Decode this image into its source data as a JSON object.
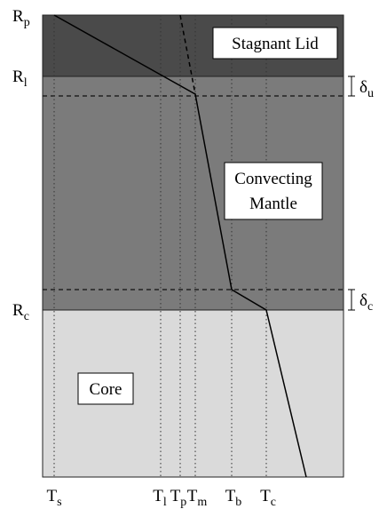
{
  "regions": [
    {
      "label": "Stagnant Lid"
    },
    {
      "label": "Convecting Mantle",
      "lines": [
        "Convecting",
        "Mantle"
      ]
    },
    {
      "label": "Core"
    }
  ],
  "radius_labels": [
    {
      "base": "R",
      "sub": "p"
    },
    {
      "base": "R",
      "sub": "l"
    },
    {
      "base": "R",
      "sub": "c"
    }
  ],
  "boundary_layers": [
    {
      "base": "δ",
      "sub": "u"
    },
    {
      "base": "δ",
      "sub": "c"
    }
  ],
  "temperature_labels": [
    {
      "base": "T",
      "sub": "s"
    },
    {
      "base": "T",
      "sub": "l"
    },
    {
      "base": "T",
      "sub": "p"
    },
    {
      "base": "T",
      "sub": "m"
    },
    {
      "base": "T",
      "sub": "b"
    },
    {
      "base": "T",
      "sub": "c"
    }
  ]
}
